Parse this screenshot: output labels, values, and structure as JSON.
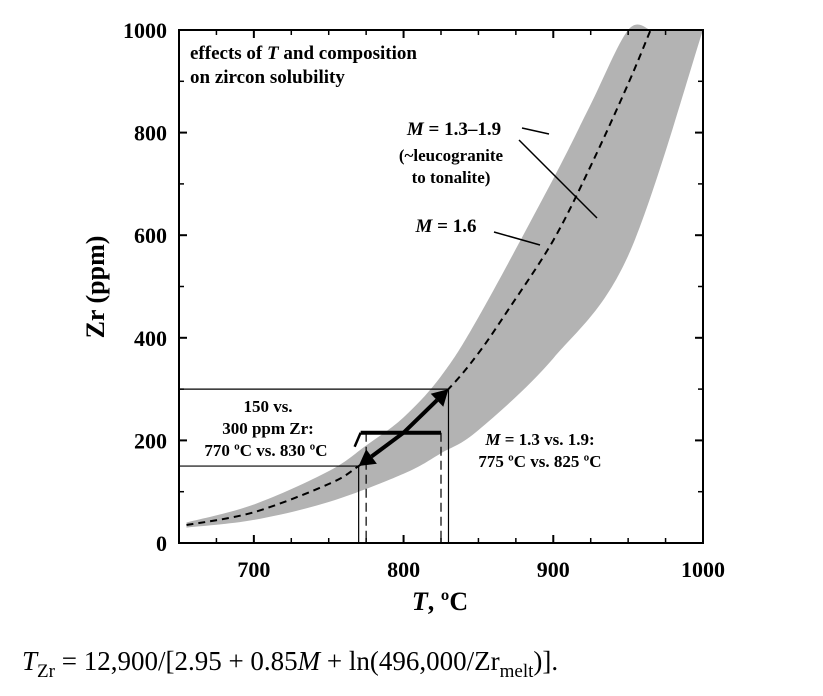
{
  "chart_data": {
    "type": "line",
    "xlim": [
      650,
      1000
    ],
    "ylim": [
      0,
      1000
    ],
    "xticks": [
      700,
      800,
      900,
      1000
    ],
    "yticks": [
      0,
      200,
      400,
      600,
      800,
      1000
    ],
    "ylabel": "Zr (ppm)",
    "xlabel_italic": "T",
    "xlabel_rest": ", ºC",
    "grid": false,
    "series": [
      {
        "name": "M = 1.6",
        "style": "dashed",
        "x": [
          655,
          700,
          750,
          770,
          800,
          830,
          850,
          870,
          900,
          925,
          950,
          965
        ],
        "y": [
          35,
          60,
          115,
          150,
          215,
          300,
          370,
          455,
          590,
          735,
          895,
          1000
        ]
      }
    ],
    "band": {
      "name": "M = 1.3–1.9",
      "color": "#b3b3b3",
      "upper": {
        "x": [
          655,
          700,
          750,
          775,
          800,
          825,
          850,
          900,
          925,
          950,
          965
        ],
        "y": [
          40,
          75,
          140,
          190,
          245,
          325,
          440,
          710,
          855,
          1000,
          1000
        ]
      },
      "lower": {
        "x": [
          655,
          700,
          750,
          800,
          825,
          850,
          900,
          950,
          1000
        ],
        "y": [
          30,
          45,
          80,
          135,
          175,
          220,
          360,
          560,
          1000
        ]
      }
    },
    "boxes": [
      {
        "x_range": [
          770,
          830
        ],
        "y_range": [
          150,
          300
        ]
      }
    ],
    "guides": [
      775,
      825
    ],
    "guide_y": [
      0,
      215
    ],
    "arrows": [
      {
        "from": [
          800,
          215
        ],
        "to": [
          770,
          150
        ]
      },
      {
        "from": [
          800,
          215
        ],
        "to": [
          830,
          300
        ]
      }
    ],
    "band_edge_at_bar": [
      778,
      825
    ],
    "annotations": {
      "title_line1_pre": "effects of ",
      "title_line1_italic": "T",
      "title_line1_post": " and composition",
      "title_line2": "on zircon solubility",
      "band_label_italic": "M",
      "band_label_rest": " = 1.3–1.9",
      "band_label_line2": "(~leucogranite",
      "band_label_line3": "to tonalite)",
      "mid_label_italic": "M",
      "mid_label_rest": " = 1.6",
      "box_label_line1": "150 vs.",
      "box_label_line2": "300 ppm Zr:",
      "box_label_line3": "770 ºC vs. 830 ºC",
      "right_label_italic": "M",
      "right_label_rest": " = 1.3 vs. 1.9:",
      "right_label_line2": "775 ºC vs. 825 ºC"
    }
  },
  "formula": {
    "T": "T",
    "T_sub": "Zr",
    "eq": " = 12,900/[2.95 + 0.85",
    "M": "M",
    "mid": " + ln(496,000/Zr",
    "melt_sub": "melt",
    "end": ")]."
  }
}
